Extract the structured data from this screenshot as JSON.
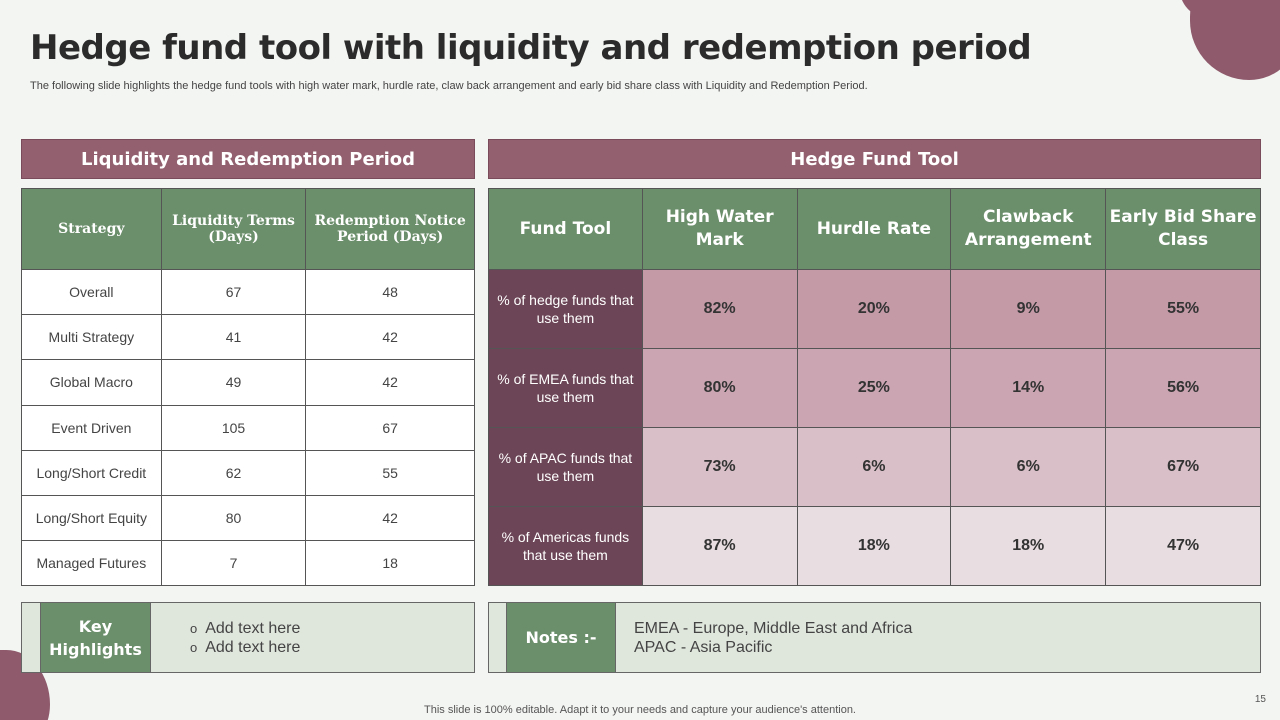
{
  "title": "Hedge fund tool with liquidity and redemption period",
  "subtitle": "The following slide highlights the hedge fund tools with high water mark, hurdle rate, claw back arrangement and early bid share class with Liquidity and Redemption Period.",
  "left_panel": {
    "header": "Liquidity and Redemption Period",
    "columns": [
      "Strategy",
      "Liquidity Terms (Days)",
      "Redemption Notice Period (Days)"
    ],
    "rows": [
      [
        "Overall",
        "67",
        "48"
      ],
      [
        "Multi Strategy",
        "41",
        "42"
      ],
      [
        "Global Macro",
        "49",
        "42"
      ],
      [
        "Event Driven",
        "105",
        "67"
      ],
      [
        "Long/Short Credit",
        "62",
        "55"
      ],
      [
        "Long/Short Equity",
        "80",
        "42"
      ],
      [
        "Managed Futures",
        "7",
        "18"
      ]
    ]
  },
  "right_panel": {
    "header": "Hedge Fund Tool",
    "columns": [
      "Fund Tool",
      "High Water Mark",
      "Hurdle Rate",
      "Clawback Arrangement",
      "Early Bid Share Class"
    ],
    "rows": [
      [
        "% of hedge funds that use them",
        "82%",
        "20%",
        "9%",
        "55%"
      ],
      [
        "% of EMEA funds that use them",
        "80%",
        "25%",
        "14%",
        "56%"
      ],
      [
        "% of APAC funds that use them",
        "73%",
        "6%",
        "6%",
        "67%"
      ],
      [
        "% of Americas funds that use them",
        "87%",
        "18%",
        "18%",
        "47%"
      ]
    ]
  },
  "key_highlights": {
    "label": "Key Highlights",
    "items": [
      "Add text here",
      "Add text here"
    ]
  },
  "notes": {
    "label": "Notes :-",
    "lines": [
      "EMEA - Europe, Middle East and Africa",
      "APAC - Asia Pacific"
    ]
  },
  "footer": "This slide is 100% editable. Adapt it to your needs and capture your audience's attention.",
  "page_number": "15"
}
